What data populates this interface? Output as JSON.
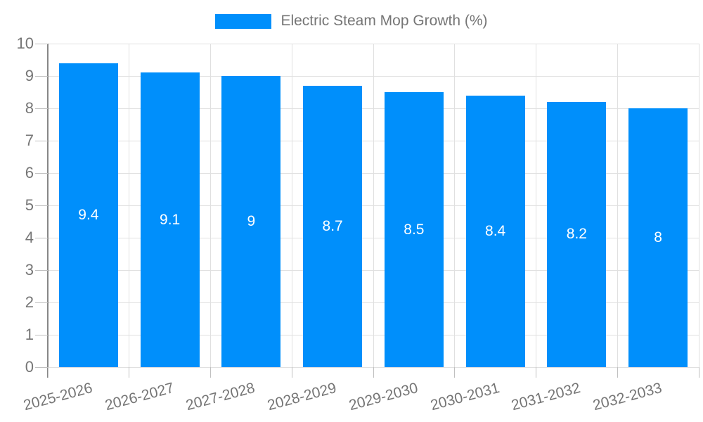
{
  "legend": {
    "label": "Electric Steam Mop Growth (%)",
    "swatch_color": "#008FFB"
  },
  "colors": {
    "bar": "#008FFB",
    "axis_label": "#757575",
    "gridline": "#e0e0e0",
    "axis_line": "#878787",
    "value_label": "#ffffff"
  },
  "chart_data": {
    "type": "bar",
    "title": "Electric Steam Mop Growth (%)",
    "categories": [
      "2025-2026",
      "2026-2027",
      "2027-2028",
      "2028-2029",
      "2029-2030",
      "2030-2031",
      "2031-2032",
      "2032-2033"
    ],
    "series": [
      {
        "name": "Electric Steam Mop Growth (%)",
        "values": [
          9.4,
          9.1,
          9,
          8.7,
          8.5,
          8.4,
          8.2,
          8
        ],
        "value_labels": [
          "9.4",
          "9.1",
          "9",
          "8.7",
          "8.5",
          "8.4",
          "8.2",
          "8"
        ]
      }
    ],
    "xlabel": "",
    "ylabel": "",
    "ylim": [
      0,
      10
    ],
    "yticks": [
      0,
      1,
      2,
      3,
      4,
      5,
      6,
      7,
      8,
      9,
      10
    ],
    "grid": true,
    "legend_position": "top"
  }
}
